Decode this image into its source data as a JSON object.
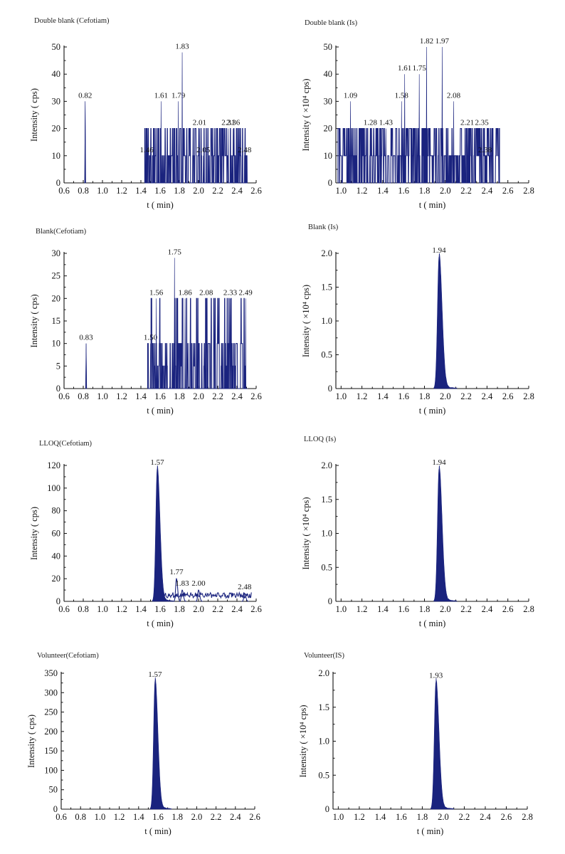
{
  "colors": {
    "trace": "#1a237e",
    "axis": "#111111"
  },
  "chart_data": [
    {
      "type": "line",
      "title": "Double blank (Cefotiam)",
      "xlabel": "t ( min)",
      "ylabel": "Intensity ( cps)",
      "xlim": [
        0.6,
        2.6
      ],
      "ylim": [
        0,
        50
      ],
      "xticks": [
        "0.6",
        "0.8",
        "1.0",
        "1.2",
        "1.4",
        "1.6",
        "1.8",
        "2.0",
        "2.2",
        "2.4",
        "2.6"
      ],
      "yticks": [
        "0",
        "10",
        "20",
        "30",
        "40",
        "50"
      ],
      "grid": false,
      "signal": "noise",
      "peaks": [
        {
          "x": 0.82,
          "y": 30,
          "label": "0.82"
        },
        {
          "x": 1.46,
          "y": 10,
          "label": "1.46"
        },
        {
          "x": 1.61,
          "y": 30,
          "label": "1.61"
        },
        {
          "x": 1.79,
          "y": 30,
          "label": "1.79"
        },
        {
          "x": 1.83,
          "y": 48,
          "label": "1.83"
        },
        {
          "x": 2.01,
          "y": 20,
          "label": "2.01"
        },
        {
          "x": 2.05,
          "y": 10,
          "label": "2.05"
        },
        {
          "x": 2.31,
          "y": 20,
          "label": "2.31"
        },
        {
          "x": 2.36,
          "y": 20,
          "label": "2.36"
        },
        {
          "x": 2.48,
          "y": 10,
          "label": "2.48"
        }
      ]
    },
    {
      "type": "line",
      "title": "Double blank (Is)",
      "xlabel": "t ( min)",
      "ylabel": "Intensity ( ×10⁴ cps)",
      "xlim": [
        0.95,
        2.8
      ],
      "ylim": [
        0,
        50
      ],
      "xticks": [
        "1.0",
        "1.2",
        "1.4",
        "1.6",
        "1.8",
        "2.0",
        "2.2",
        "2.4",
        "2.6",
        "2.8"
      ],
      "yticks": [
        "0",
        "10",
        "20",
        "30",
        "40",
        "50"
      ],
      "grid": false,
      "signal": "noise",
      "peaks": [
        {
          "x": 1.09,
          "y": 30,
          "label": "1.09"
        },
        {
          "x": 1.28,
          "y": 20,
          "label": "1.28"
        },
        {
          "x": 1.43,
          "y": 20,
          "label": "1.43"
        },
        {
          "x": 1.58,
          "y": 30,
          "label": "1.58"
        },
        {
          "x": 1.61,
          "y": 40,
          "label": "1.61"
        },
        {
          "x": 1.75,
          "y": 40,
          "label": "1.75"
        },
        {
          "x": 1.82,
          "y": 50,
          "label": "1.82"
        },
        {
          "x": 1.97,
          "y": 50,
          "label": "1.97"
        },
        {
          "x": 2.08,
          "y": 30,
          "label": "2.08"
        },
        {
          "x": 2.21,
          "y": 20,
          "label": "2.21"
        },
        {
          "x": 2.35,
          "y": 20,
          "label": "2.35"
        },
        {
          "x": 2.38,
          "y": 10,
          "label": "2.38"
        }
      ]
    },
    {
      "type": "line",
      "title": "Blank(Cefotiam)",
      "xlabel": "t ( min)",
      "ylabel": "Intensity ( cps)",
      "xlim": [
        0.6,
        2.6
      ],
      "ylim": [
        0,
        30
      ],
      "xticks": [
        "0.6",
        "0.8",
        "1.0",
        "1.2",
        "1.4",
        "1.6",
        "1.8",
        "2.0",
        "2.2",
        "2.4",
        "2.6"
      ],
      "yticks": [
        "0",
        "5",
        "10",
        "15",
        "20",
        "25",
        "30"
      ],
      "grid": false,
      "signal": "noise",
      "peaks": [
        {
          "x": 0.83,
          "y": 10,
          "label": "0.83"
        },
        {
          "x": 1.5,
          "y": 10,
          "label": "1.50"
        },
        {
          "x": 1.56,
          "y": 20,
          "label": "1.56"
        },
        {
          "x": 1.75,
          "y": 29,
          "label": "1.75"
        },
        {
          "x": 1.86,
          "y": 20,
          "label": "1.86"
        },
        {
          "x": 2.08,
          "y": 20,
          "label": "2.08"
        },
        {
          "x": 2.33,
          "y": 20,
          "label": "2.33"
        },
        {
          "x": 2.49,
          "y": 20,
          "label": "2.49"
        }
      ]
    },
    {
      "type": "line",
      "title": "Blank (Is)",
      "xlabel": "t ( min)",
      "ylabel": "Intensity ( ×10⁴ cps)",
      "xlim": [
        0.95,
        2.8
      ],
      "ylim": [
        0,
        2.0
      ],
      "xticks": [
        "1.0",
        "1.2",
        "1.4",
        "1.6",
        "1.8",
        "2.0",
        "2.2",
        "2.4",
        "2.6",
        "2.8"
      ],
      "yticks": [
        "0",
        "0.5",
        "1.0",
        "1.5",
        "2.0"
      ],
      "grid": false,
      "signal": "peak",
      "peaks": [
        {
          "x": 1.94,
          "y": 1.95,
          "label": "1.94"
        }
      ]
    },
    {
      "type": "line",
      "title": "LLOQ(Cefotiam)",
      "xlabel": "t ( min)",
      "ylabel": "Intensity ( cps)",
      "xlim": [
        0.6,
        2.6
      ],
      "ylim": [
        0,
        120
      ],
      "xticks": [
        "0.6",
        "0.8",
        "1.0",
        "1.2",
        "1.4",
        "1.6",
        "1.8",
        "2.0",
        "2.2",
        "2.4",
        "2.6"
      ],
      "yticks": [
        "0",
        "20",
        "40",
        "60",
        "80",
        "100",
        "120"
      ],
      "grid": false,
      "signal": "peak",
      "peaks": [
        {
          "x": 1.57,
          "y": 117,
          "label": "1.57"
        },
        {
          "x": 1.77,
          "y": 20,
          "label": "1.77"
        },
        {
          "x": 1.83,
          "y": 10,
          "label": "1.83"
        },
        {
          "x": 2.0,
          "y": 10,
          "label": "2.00"
        },
        {
          "x": 2.48,
          "y": 7,
          "label": "2.48"
        }
      ]
    },
    {
      "type": "line",
      "title": "LLOQ (Is)",
      "xlabel": "t ( min)",
      "ylabel": "Intensity ( ×10⁴ cps)",
      "xlim": [
        0.95,
        2.8
      ],
      "ylim": [
        0,
        2.0
      ],
      "xticks": [
        "1.0",
        "1.2",
        "1.4",
        "1.6",
        "1.8",
        "2.0",
        "2.2",
        "2.4",
        "2.6",
        "2.8"
      ],
      "yticks": [
        "0",
        "0.5",
        "1.0",
        "1.5",
        "2.0"
      ],
      "grid": false,
      "signal": "peak",
      "peaks": [
        {
          "x": 1.94,
          "y": 1.95,
          "label": "1.94"
        }
      ]
    },
    {
      "type": "line",
      "title": "Volunteer(Cefotiam)",
      "xlabel": "t ( min)",
      "ylabel": "Intensity ( cps)",
      "xlim": [
        0.6,
        2.6
      ],
      "ylim": [
        0,
        350
      ],
      "xticks": [
        "0.6",
        "0.8",
        "1.0",
        "1.2",
        "1.4",
        "1.6",
        "1.8",
        "2.0",
        "2.2",
        "2.4",
        "2.6"
      ],
      "yticks": [
        "0",
        "50",
        "100",
        "150",
        "200",
        "250",
        "300",
        "350"
      ],
      "grid": false,
      "signal": "peak",
      "peaks": [
        {
          "x": 1.57,
          "y": 330,
          "label": "1.57"
        }
      ]
    },
    {
      "type": "line",
      "title": "Volunteer(IS)",
      "xlabel": "t ( min)",
      "ylabel": "Intensity ( ×10⁴ cps)",
      "xlim": [
        0.95,
        2.8
      ],
      "ylim": [
        0,
        2.0
      ],
      "xticks": [
        "1.0",
        "1.2",
        "1.4",
        "1.6",
        "1.8",
        "2.0",
        "2.2",
        "2.4",
        "2.6",
        "2.8"
      ],
      "yticks": [
        "0",
        "0.5",
        "1.0",
        "1.5",
        "2.0"
      ],
      "grid": false,
      "signal": "peak",
      "peaks": [
        {
          "x": 1.93,
          "y": 1.87,
          "label": "1.93"
        }
      ]
    }
  ]
}
